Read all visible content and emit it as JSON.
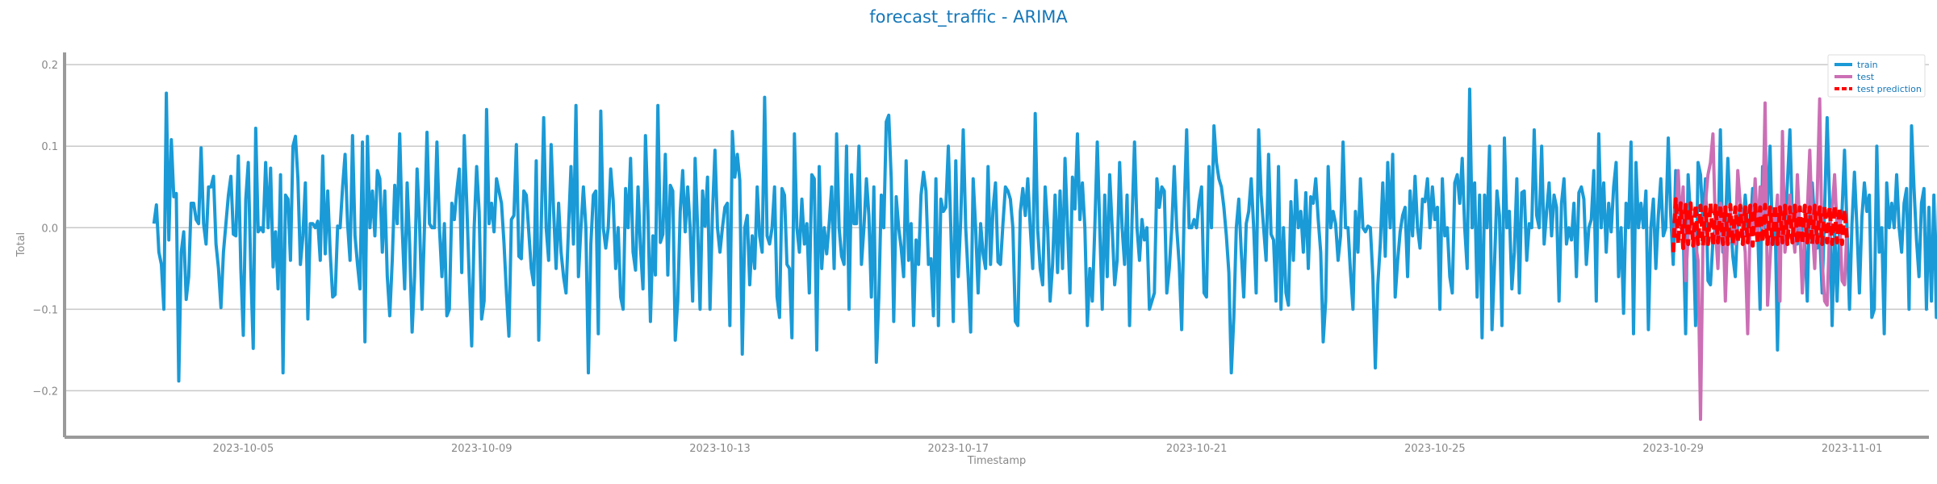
{
  "chart_data": {
    "type": "line",
    "title": "forecast_traffic - ARIMA",
    "xlabel": "Timestamp",
    "ylabel": "Total",
    "x_range": [
      "2023-10-02",
      "2023-11-02T07:00"
    ],
    "ylim": [
      -0.255,
      0.215
    ],
    "x_ticks": [
      "2023-10-05",
      "2023-10-09",
      "2023-10-13",
      "2023-10-17",
      "2023-10-21",
      "2023-10-25",
      "2023-10-29",
      "2023-11-01"
    ],
    "y_ticks": [
      -0.2,
      -0.1,
      0.0,
      0.1,
      0.2
    ],
    "y_tick_labels": [
      "−0.2",
      "−0.1",
      "0.0",
      "0.1",
      "0.2"
    ],
    "grid": "horizontal",
    "legend_position": "top-right",
    "series": [
      {
        "name": "train",
        "color": "#1a9ad6",
        "style": "solid",
        "x_start": "2023-10-03T12:00",
        "x_step_hours": 1,
        "values": [
          0.005,
          0.028,
          -0.03,
          -0.045,
          -0.1,
          0.165,
          -0.015,
          0.108,
          0.038,
          0.042,
          -0.188,
          -0.03,
          -0.005,
          -0.088,
          -0.06,
          0.03,
          0.03,
          0.01,
          0.005,
          0.098,
          0.005,
          -0.02,
          0.05,
          0.05,
          0.063,
          -0.02,
          -0.05,
          -0.098,
          -0.03,
          0.005,
          0.04,
          0.063,
          -0.008,
          -0.01,
          0.088,
          -0.05,
          -0.132,
          0.035,
          0.08,
          -0.05,
          -0.148,
          0.122,
          -0.005,
          0.0,
          -0.005,
          0.08,
          0.0,
          0.073,
          -0.048,
          -0.005,
          -0.075,
          0.065,
          -0.178,
          0.04,
          0.035,
          -0.04,
          0.1,
          0.112,
          0.06,
          -0.045,
          -0.01,
          0.055,
          -0.112,
          0.005,
          0.005,
          0.0,
          0.008,
          -0.04,
          0.088,
          -0.032,
          0.045,
          -0.03,
          -0.085,
          -0.082,
          0.002,
          0.0,
          0.05,
          0.09,
          0.005,
          -0.04,
          0.113,
          -0.01,
          -0.045,
          -0.075,
          0.105,
          -0.14,
          0.112,
          0.0,
          0.045,
          -0.01,
          0.07,
          0.06,
          -0.03,
          0.045,
          -0.06,
          -0.108,
          -0.04,
          0.052,
          0.005,
          0.115,
          0.0,
          -0.075,
          0.055,
          -0.02,
          -0.128,
          -0.06,
          0.072,
          0.005,
          -0.1,
          0.003,
          0.117,
          0.005,
          0.0,
          0.0,
          0.105,
          0.0,
          -0.06,
          0.005,
          -0.108,
          -0.1,
          0.03,
          0.01,
          0.045,
          0.072,
          -0.055,
          0.113,
          0.03,
          -0.06,
          -0.145,
          0.0,
          0.075,
          0.02,
          -0.112,
          -0.09,
          0.145,
          0.005,
          0.03,
          -0.005,
          0.06,
          0.045,
          0.03,
          -0.018,
          -0.08,
          -0.133,
          0.01,
          0.015,
          0.102,
          -0.035,
          -0.038,
          0.045,
          0.04,
          -0.005,
          -0.05,
          -0.07,
          0.082,
          -0.138,
          0.0,
          0.135,
          0.0,
          -0.04,
          0.102,
          0.02,
          -0.05,
          0.03,
          -0.03,
          -0.06,
          -0.08,
          0.0,
          0.075,
          -0.02,
          0.15,
          -0.06,
          0.0,
          0.05,
          0.0,
          -0.178,
          -0.02,
          0.04,
          0.045,
          -0.13,
          0.143,
          0.0,
          -0.025,
          0.0,
          0.072,
          0.033,
          -0.05,
          0.0,
          -0.085,
          -0.1,
          0.048,
          0.0,
          0.085,
          -0.03,
          -0.052,
          0.05,
          -0.025,
          -0.075,
          0.113,
          0.02,
          -0.115,
          -0.01,
          -0.058,
          0.15,
          -0.018,
          -0.008,
          0.09,
          -0.058,
          0.052,
          0.045,
          -0.138,
          -0.09,
          0.02,
          0.07,
          -0.005,
          0.05,
          0.0,
          -0.09,
          0.085,
          0.0,
          -0.1,
          0.045,
          0.002,
          0.062,
          -0.1,
          0.018,
          0.095,
          0.0,
          -0.03,
          0.0,
          0.025,
          0.03,
          -0.12,
          0.118,
          0.062,
          0.09,
          0.058,
          -0.155,
          0.0,
          0.015,
          -0.07,
          -0.01,
          -0.05,
          0.05,
          -0.01,
          -0.03,
          0.16,
          -0.01,
          -0.02,
          0.0,
          0.05,
          -0.085,
          -0.11,
          0.048,
          0.04,
          -0.045,
          -0.05,
          -0.135,
          0.115,
          0.0,
          -0.03,
          0.035,
          -0.02,
          0.005,
          -0.08,
          0.065,
          0.06,
          -0.15,
          0.075,
          -0.05,
          0.0,
          -0.032,
          0.005,
          0.05,
          -0.05,
          0.115,
          0.0,
          -0.035,
          -0.045,
          0.1,
          -0.1,
          0.065,
          0.005,
          0.005,
          0.1,
          -0.045,
          0.0,
          0.06,
          0.015,
          -0.085,
          0.05,
          -0.165,
          -0.085,
          0.04,
          0.0,
          0.13,
          0.138,
          0.06,
          -0.115,
          0.038,
          0.0,
          -0.025,
          -0.06,
          0.082,
          -0.04,
          0.005,
          -0.12,
          -0.015,
          -0.045,
          0.04,
          0.068,
          0.045,
          -0.045,
          -0.038,
          -0.108,
          0.06,
          -0.12,
          0.035,
          0.02,
          0.025,
          0.1,
          0.0,
          -0.115,
          0.082,
          -0.06,
          0.01,
          0.12,
          0.0,
          -0.06,
          -0.128,
          0.06,
          0.0,
          -0.08,
          0.005,
          -0.032,
          -0.05,
          0.075,
          -0.045,
          0.023,
          0.055,
          -0.042,
          -0.045,
          0.005,
          0.05,
          0.045,
          0.035,
          0.0,
          -0.115,
          -0.12,
          0.02,
          0.048,
          0.015,
          0.06,
          0.0,
          -0.05,
          0.14,
          -0.003,
          -0.05,
          -0.07,
          0.05,
          0.0,
          -0.09,
          -0.045,
          0.04,
          -0.055,
          0.045,
          -0.05,
          0.085,
          0.0,
          -0.08,
          0.062,
          0.023,
          0.115,
          0.01,
          0.055,
          0.0,
          -0.12,
          -0.05,
          -0.09,
          0.0,
          0.105,
          0.0,
          -0.1,
          0.04,
          -0.06,
          0.065,
          0.0,
          -0.07,
          -0.04,
          0.08,
          0.0,
          -0.045,
          0.04,
          -0.12,
          0.01,
          0.105,
          0.0,
          -0.04,
          0.01,
          -0.015,
          0.0,
          -0.1,
          -0.09,
          -0.08,
          0.06,
          0.025,
          0.05,
          0.045,
          -0.08,
          -0.05,
          0.0,
          0.075,
          0.0,
          -0.045,
          -0.125,
          0.02,
          0.12,
          0.0,
          0.0,
          0.01,
          0.0,
          0.032,
          0.05,
          -0.08,
          -0.085,
          0.075,
          0.0,
          0.125,
          0.08,
          0.06,
          0.05,
          0.025,
          -0.01,
          -0.055,
          -0.178,
          -0.11,
          0.0,
          0.035,
          -0.03,
          -0.085,
          0.005,
          0.02,
          0.06,
          0.0,
          -0.08,
          0.12,
          0.04,
          0.0,
          -0.04,
          0.09,
          -0.008,
          -0.015,
          -0.09,
          0.075,
          -0.1,
          0.0,
          -0.08,
          -0.095,
          0.032,
          -0.04,
          0.058,
          0.0,
          0.02,
          -0.03,
          0.043,
          -0.05,
          0.038,
          0.03,
          0.06,
          0.01,
          -0.03,
          -0.14,
          -0.09,
          0.075,
          0.0,
          0.02,
          0.005,
          -0.04,
          -0.01,
          0.105,
          0.0,
          0.0,
          -0.055,
          -0.1,
          0.02,
          -0.03,
          0.06,
          0.0,
          -0.005,
          0.002,
          0.0,
          -0.06,
          -0.172,
          -0.07,
          -0.02,
          0.055,
          -0.035,
          0.08,
          0.0,
          0.09,
          -0.085,
          -0.04,
          -0.005,
          0.015,
          0.025,
          -0.06,
          0.045,
          -0.01,
          0.063,
          0.0,
          -0.025,
          0.035,
          0.032,
          0.06,
          0.0,
          0.05,
          0.01,
          0.025,
          -0.1,
          0.06,
          -0.01,
          0.0,
          -0.06,
          -0.08,
          0.055,
          0.065,
          0.03,
          0.085,
          0.0,
          -0.05,
          0.17,
          0.0,
          0.055,
          -0.085,
          0.04,
          -0.135,
          0.04,
          0.0,
          0.1,
          -0.125,
          -0.045,
          0.045,
          0.015,
          -0.12,
          0.11,
          0.0,
          0.02,
          -0.075,
          -0.03,
          0.06,
          -0.08,
          0.043,
          0.045,
          -0.04,
          0.005,
          0.0,
          0.12,
          0.015,
          0.0,
          0.1,
          -0.02,
          0.02,
          0.055,
          -0.01,
          0.04,
          0.025,
          -0.09,
          0.03,
          0.06,
          -0.02,
          0.0,
          -0.015,
          0.03,
          -0.06,
          0.043,
          0.05,
          0.035,
          -0.045,
          0.0,
          0.01,
          0.07,
          -0.09,
          0.115,
          0.0,
          0.055,
          -0.03,
          0.03,
          -0.005,
          0.05,
          0.08,
          -0.06,
          0.0,
          -0.105,
          0.03,
          0.0,
          0.105,
          -0.13,
          0.08,
          0.0,
          0.03,
          0.0,
          0.045,
          -0.125,
          0.0,
          0.035,
          -0.05,
          0.015,
          0.06,
          -0.01,
          0.0,
          0.11,
          0.015,
          -0.045,
          0.07,
          0.035,
          0.005,
          0.0,
          -0.13,
          0.065,
          0.012,
          0.0,
          -0.12,
          0.08,
          0.065,
          0.005,
          0.06,
          -0.065,
          -0.07,
          -0.015,
          0.0,
          -0.025,
          0.12,
          -0.03,
          0.0,
          0.085,
          0.015,
          -0.035,
          -0.06,
          0.01,
          0.02,
          0.0,
          0.04,
          0.0,
          -0.005,
          0.048,
          0.048,
          0.0,
          -0.1,
          0.075,
          0.0,
          0.03,
          0.1,
          -0.02,
          0.02,
          -0.15,
          0.0,
          0.035,
          0.0,
          0.055,
          0.12,
          0.01,
          0.025,
          -0.02,
          0.0,
          0.005,
          -0.02,
          -0.09,
          0.048,
          0.055,
          0.005,
          -0.025,
          -0.008,
          -0.08,
          0.025,
          0.135,
          0.032,
          -0.12,
          0.0,
          -0.09,
          0.0,
          0.02,
          0.095,
          0.0,
          -0.1,
          0.005,
          0.068,
          0.0,
          -0.08,
          0.013,
          0.055,
          0.02,
          0.04,
          -0.11,
          -0.1,
          0.1,
          -0.03,
          0.0,
          -0.13,
          0.055,
          0.0,
          0.03,
          0.0,
          0.065,
          0.0,
          -0.03,
          0.03,
          0.048,
          -0.1,
          0.125,
          0.048,
          -0.015,
          -0.06,
          0.03,
          0.048,
          -0.1,
          0.025,
          -0.09,
          0.04,
          -0.11,
          0.05,
          0.0,
          0.07,
          0.025,
          0.12,
          -0.07,
          0.0,
          -0.035,
          0.0,
          0.145,
          -0.05,
          -0.06,
          0.15,
          0.055,
          -0.035,
          0.0,
          -0.03,
          0.05,
          -0.07,
          0.02,
          0.075,
          0.045,
          -0.045,
          0.0,
          0.05,
          -0.02,
          0.0,
          -0.035,
          0.025,
          0.075,
          -0.05,
          0.03,
          0.008,
          0.0,
          -0.002,
          0.045,
          0.02,
          0.0,
          0.055,
          0.065,
          -0.03,
          0.0,
          0.09,
          -0.085,
          0.0,
          0.08,
          -0.065,
          0.045,
          -0.06,
          0.0,
          -0.055,
          0.03,
          -0.07,
          0.0,
          -0.06,
          -0.125,
          0.0,
          0.06,
          -0.06,
          -0.01,
          0.025,
          0.015,
          0.0,
          0.055,
          0.0,
          -0.11,
          0.04,
          0.025,
          0.0,
          -0.045,
          0.035,
          0.038,
          0.05,
          0.0,
          0.06,
          0.015,
          0.035,
          0.003,
          0.04,
          0.065,
          -0.025,
          0.0,
          0.05,
          0.0,
          0.03,
          -0.06,
          0.09,
          0.0,
          -0.06,
          0.08,
          -0.11,
          0.055,
          0.035,
          0.02,
          0.0,
          0.045,
          -0.03,
          -0.02,
          0.07,
          0.035,
          0.0,
          -0.09,
          0.02,
          0.07,
          0.0,
          -0.075,
          0.0,
          0.1,
          0.0,
          -0.03,
          0.06,
          0.0,
          0.01,
          0.035,
          -0.12,
          0.0,
          0.03,
          0.06,
          0.09,
          0.06,
          -0.05,
          0.035,
          0.145
        ]
      },
      {
        "name": "test",
        "color": "#cc6fb5",
        "style": "solid",
        "x_start": "2023-10-29T00:00",
        "x_step_hours": 1,
        "values": [
          0.0,
          -0.005,
          0.07,
          0.0,
          0.05,
          -0.065,
          -0.01,
          0.02,
          0.0,
          -0.02,
          -0.04,
          -0.235,
          -0.01,
          0.03,
          0.065,
          0.08,
          0.115,
          0.0,
          -0.05,
          0.03,
          0.02,
          -0.09,
          0.0,
          0.02,
          0.0,
          -0.02,
          0.07,
          0.03,
          0.0,
          -0.03,
          -0.13,
          0.01,
          0.0,
          0.06,
          -0.01,
          0.05,
          0.0,
          0.153,
          -0.095,
          -0.04,
          0.02,
          0.0,
          0.04,
          -0.09,
          0.118,
          -0.03,
          0.0,
          0.04,
          0.0,
          -0.03,
          0.065,
          0.0,
          -0.08,
          0.0,
          0.02,
          0.095,
          0.0,
          -0.05,
          0.04,
          0.158,
          -0.04,
          -0.09,
          -0.095,
          0.0,
          0.02,
          0.065,
          0.0,
          0.02,
          -0.065,
          -0.07,
          0.0
        ]
      },
      {
        "name": "test prediction",
        "color": "#ff0000",
        "style": "dashed",
        "x_start": "2023-10-29T00:00",
        "x_step_hours": 1,
        "values": [
          -0.03,
          0.035,
          -0.02,
          0.03,
          -0.025,
          0.028,
          -0.02,
          0.03,
          -0.022,
          0.028,
          -0.02,
          0.027,
          -0.022,
          0.025,
          -0.02,
          0.03,
          -0.022,
          0.027,
          -0.018,
          0.028,
          -0.02,
          0.025,
          -0.02,
          0.028,
          -0.02,
          0.025,
          -0.018,
          0.027,
          -0.02,
          0.025,
          -0.018,
          0.027,
          -0.022,
          0.028,
          -0.02,
          0.025,
          -0.018,
          0.028,
          -0.02,
          0.025,
          -0.02,
          0.028,
          -0.02,
          0.025,
          -0.018,
          0.027,
          -0.02,
          0.025,
          -0.018,
          0.027,
          -0.02,
          0.025,
          -0.02,
          0.027,
          -0.018,
          0.025,
          -0.02,
          0.027,
          -0.018,
          0.025,
          -0.02,
          0.027,
          -0.018,
          0.025,
          -0.02,
          0.027,
          -0.018,
          0.025,
          -0.02,
          0.022,
          -0.015
        ]
      }
    ]
  }
}
